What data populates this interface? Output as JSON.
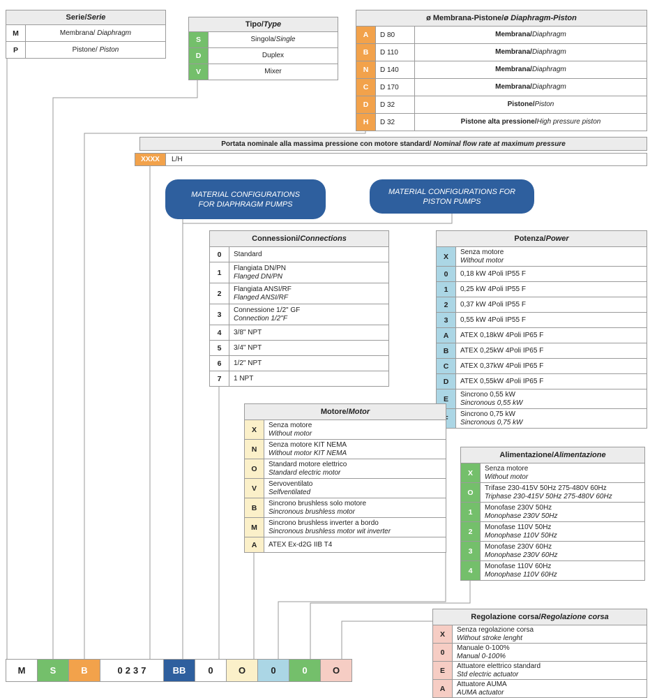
{
  "palette": {
    "orange": "#F2A24B",
    "green": "#74BF6B",
    "light_blue": "#ABD6E5",
    "cream": "#FBF0C9",
    "pink": "#F6CDC4",
    "blue": "#2E5F9E",
    "header_gray": "#ECECEC",
    "border": "#9A9A9A",
    "line": "#999999"
  },
  "serie": {
    "title_it": "Serie/",
    "title_en": "Serie",
    "rows": [
      {
        "code": "M",
        "it": "Membrana/ ",
        "en": "Diaphragm"
      },
      {
        "code": "P",
        "it": "Pistone/ ",
        "en": "Piston"
      }
    ]
  },
  "tipo": {
    "title_it": "Tipo/",
    "title_en": "Type",
    "rows": [
      {
        "code": "S",
        "it": "Singola/",
        "en": "Single"
      },
      {
        "code": "D",
        "it": "Duplex",
        "en": ""
      },
      {
        "code": "V",
        "it": "Mixer",
        "en": ""
      }
    ]
  },
  "diametro": {
    "title_it": "ø Membrana-Pistone/",
    "title_en": "ø Diaphragm-Piston",
    "rows": [
      {
        "code": "A",
        "size": "D 80",
        "it": "Membrana/",
        "en": "Diaphragm"
      },
      {
        "code": "B",
        "size": "D 110",
        "it": "Membrana/",
        "en": "Diaphragm"
      },
      {
        "code": "N",
        "size": "D 140",
        "it": "Membrana/",
        "en": "Diaphragm"
      },
      {
        "code": "C",
        "size": "D 170",
        "it": "Membrana/",
        "en": "Diaphragm"
      },
      {
        "code": "D",
        "size": "D 32",
        "it": "Pistone/",
        "en": "Piston"
      },
      {
        "code": "H",
        "size": "D 32",
        "it": "Pistone alta pressione/",
        "en": "High pressure piston"
      }
    ]
  },
  "portata": {
    "title_it": "Portata nominale alla massima pressione con motore standard/",
    "title_en": " Nominal flow rate at maximum pressure",
    "code": "XXXX",
    "unit": "L/H"
  },
  "callouts": {
    "diaphragm": "MATERIAL CONFIGURATIONS FOR DIAPHRAGM PUMPS",
    "piston": "MATERIAL CONFIGURATIONS FOR PISTON PUMPS"
  },
  "connessioni": {
    "title_it": "Connessioni/",
    "title_en": "Connections",
    "rows": [
      {
        "code": "0",
        "it": "Standard",
        "en": ""
      },
      {
        "code": "1",
        "it": "Flangiata DN/PN",
        "en": "Flanged DN/PN"
      },
      {
        "code": "2",
        "it": "Flangiata ANSI/RF",
        "en": "Flanged ANSI/RF"
      },
      {
        "code": "3",
        "it": "Connessione 1/2\" GF",
        "en": "Connection 1/2\"F"
      },
      {
        "code": "4",
        "it": "3/8\" NPT",
        "en": ""
      },
      {
        "code": "5",
        "it": "3/4\" NPT",
        "en": ""
      },
      {
        "code": "6",
        "it": "1/2\" NPT",
        "en": ""
      },
      {
        "code": "7",
        "it": "1 NPT",
        "en": ""
      }
    ]
  },
  "potenza": {
    "title_it": "Potenza/",
    "title_en": "Power",
    "rows": [
      {
        "code": "X",
        "it": "Senza motore",
        "en": "Without motor"
      },
      {
        "code": "0",
        "it": "0,18 kW 4Poli IP55 F",
        "en": ""
      },
      {
        "code": "1",
        "it": "0,25 kW 4Poli IP55 F",
        "en": ""
      },
      {
        "code": "2",
        "it": "0,37 kW 4Poli IP55 F",
        "en": ""
      },
      {
        "code": "3",
        "it": "0,55 kW 4Poli IP55 F",
        "en": ""
      },
      {
        "code": "A",
        "it": "ATEX 0,18kW 4Poli IP65 F",
        "en": ""
      },
      {
        "code": "B",
        "it": "ATEX 0,25kW 4Poli IP65 F",
        "en": ""
      },
      {
        "code": "C",
        "it": "ATEX 0,37kW 4Poli IP65 F",
        "en": ""
      },
      {
        "code": "D",
        "it": "ATEX 0,55kW 4Poli IP65 F",
        "en": ""
      },
      {
        "code": "E",
        "it": "Sincrono 0,55 kW",
        "en": "Sincronous 0,55 kW"
      },
      {
        "code": "F",
        "it": "Sincrono 0,75 kW",
        "en": "Sincronous 0,75 kW"
      }
    ]
  },
  "motore": {
    "title_it": "Motore/",
    "title_en": "Motor",
    "rows": [
      {
        "code": "X",
        "it": "Senza motore",
        "en": "Without motor"
      },
      {
        "code": "N",
        "it": "Senza motore KIT NEMA",
        "en": "Without motor KIT NEMA"
      },
      {
        "code": "O",
        "it": "Standard motore elettrico",
        "en": "Standard electric motor"
      },
      {
        "code": "V",
        "it": "Servoventilato",
        "en": "Selfventilated"
      },
      {
        "code": "B",
        "it": "Sincrono brushless solo motore",
        "en": "Sincronous brushless motor"
      },
      {
        "code": "M",
        "it": "Sincrono brushless inverter a bordo",
        "en": "Sincronous brushless motor wit inverter"
      },
      {
        "code": "A",
        "it": "ATEX Ex-d2G IIB T4",
        "en": ""
      }
    ]
  },
  "alimentazione": {
    "title_it": "Alimentazione/",
    "title_en": "Alimentazione",
    "rows": [
      {
        "code": "X",
        "it": "Senza motore",
        "en": "Without motor"
      },
      {
        "code": "O",
        "it": "Trifase 230-415V 50Hz 275-480V 60Hz",
        "en": "Triphase 230-415V 50Hz 275-480V 60Hz"
      },
      {
        "code": "1",
        "it": "Monofase 230V 50Hz",
        "en": "Monophase 230V 50Hz"
      },
      {
        "code": "2",
        "it": "Monofase 110V 50Hz",
        "en": "Monophase 110V 50Hz"
      },
      {
        "code": "3",
        "it": "Monofase 230V 60Hz",
        "en": "Monophase 230V 60Hz"
      },
      {
        "code": "4",
        "it": "Monofase 110V 60Hz",
        "en": "Monophase 110V 60Hz"
      }
    ]
  },
  "regolazione": {
    "title_it": "Regolazione corsa/",
    "title_en": "Regolazione corsa",
    "rows": [
      {
        "code": "X",
        "it": "Senza regolazione corsa",
        "en": "Without stroke lenght"
      },
      {
        "code": "0",
        "it": "Manuale 0-100%",
        "en": "Manual 0-100%"
      },
      {
        "code": "E",
        "it": "Attuatore elettrico standard",
        "en": "Std electric actuator"
      },
      {
        "code": "A",
        "it": "Attuatore AUMA",
        "en": "AUMA actuator"
      }
    ]
  },
  "code_row": {
    "cells": [
      {
        "value": "M"
      },
      {
        "value": "S"
      },
      {
        "value": "B"
      },
      {
        "value": "0237"
      },
      {
        "value": "BB"
      },
      {
        "value": "0"
      },
      {
        "value": "O"
      },
      {
        "value": "0"
      },
      {
        "value": "0"
      },
      {
        "value": "O"
      }
    ]
  }
}
